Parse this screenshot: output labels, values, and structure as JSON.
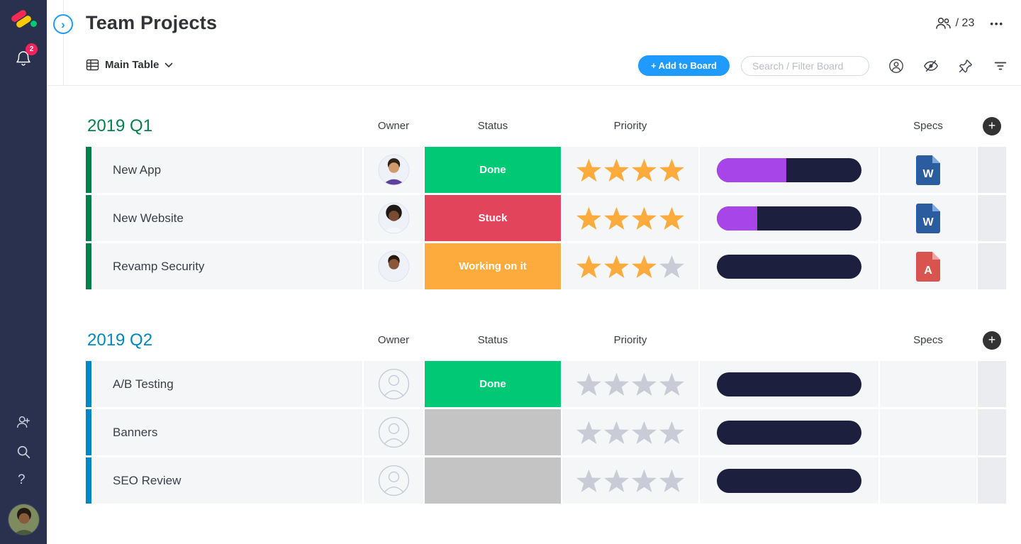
{
  "sidebar": {
    "notification_badge": "2"
  },
  "header": {
    "title": "Team Projects",
    "members": "/ 23"
  },
  "toolbar": {
    "view": "Main Table",
    "add_button": "+ Add to Board",
    "search_placeholder": "Search / Filter Board"
  },
  "icons": {
    "ellipsis": "•••",
    "help": "?",
    "add_column_plus": "+",
    "collapse_chevron": "›",
    "board_view_icon": "table-grid",
    "chevron_down": "caret-down",
    "members_icon": "two-people",
    "person_filter_icon": "person-circle",
    "hidden_columns_icon": "eye-slash",
    "pin_icon": "pushpin",
    "filter_icon": "filter-lines",
    "bell_icon": "bell",
    "invite_icon": "person-plus",
    "search_icon": "magnifier"
  },
  "colors": {
    "accent_blue": "#1f9aff",
    "sidebar_bg": "#2a314f",
    "notification_badge": "#f0245c",
    "status_done": "#00c875",
    "status_stuck": "#e2445c",
    "status_working": "#fdab3d",
    "status_empty": "#c4c4c4",
    "star_filled": "#fdab3d",
    "star_empty": "#c9ccd6",
    "progress_fill": "#a845e8",
    "progress_track": "#1c1f3e"
  },
  "table": {
    "columns": [
      "Owner",
      "Status",
      "Priority",
      "Specs"
    ],
    "stars_total": 4,
    "groups": [
      {
        "title": "2019 Q1",
        "color": "#037f4c",
        "rows": [
          {
            "name": "New App",
            "owner": "avatar-man-beard",
            "status": "Done",
            "status_color": "#00c875",
            "stars": 4,
            "progress_filled_pct": 48,
            "spec": {
              "label": "W",
              "color": "#2b5c9f",
              "fold": "#7fa8dc"
            }
          },
          {
            "name": "New Website",
            "owner": "avatar-woman-afro",
            "status": "Stuck",
            "status_color": "#e2445c",
            "stars": 4,
            "progress_filled_pct": 28,
            "spec": {
              "label": "W",
              "color": "#2b5c9f",
              "fold": "#7fa8dc"
            }
          },
          {
            "name": "Revamp Security",
            "owner": "avatar-man-smile",
            "status": "Working on it",
            "status_color": "#fdab3d",
            "stars": 3,
            "progress_filled_pct": 0,
            "spec": {
              "label": "A",
              "color": "#d9544f",
              "fold": "#efa3a4"
            }
          }
        ]
      },
      {
        "title": "2019 Q2",
        "color": "#0086c0",
        "rows": [
          {
            "name": "A/B Testing",
            "owner": null,
            "status": "Done",
            "status_color": "#00c875",
            "stars": 0,
            "progress_filled_pct": 0,
            "spec": null
          },
          {
            "name": "Banners",
            "owner": null,
            "status": "",
            "status_color": "#c4c4c4",
            "stars": 0,
            "progress_filled_pct": 0,
            "spec": null
          },
          {
            "name": "SEO Review",
            "owner": null,
            "status": "",
            "status_color": "#c4c4c4",
            "stars": 0,
            "progress_filled_pct": 0,
            "spec": null
          }
        ]
      }
    ]
  }
}
